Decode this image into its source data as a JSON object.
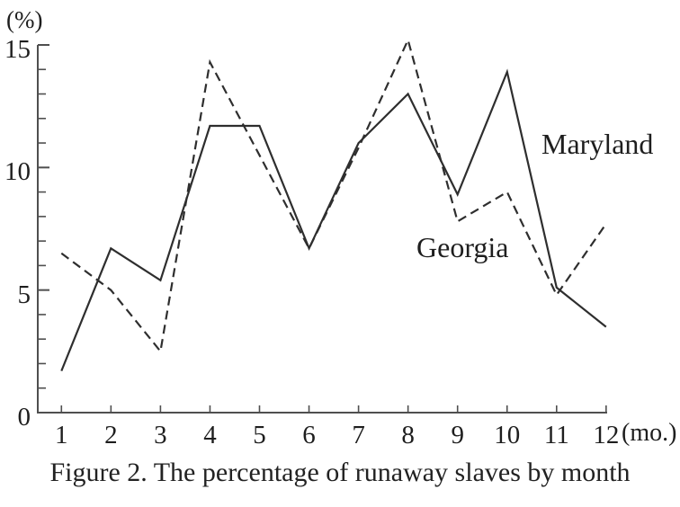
{
  "caption": "Figure 2. The percentage of runaway slaves by month",
  "chart_data": {
    "type": "line",
    "title": "Figure 2. The percentage of runaway slaves by month",
    "xlabel": "(mo.)",
    "ylabel": "(%)",
    "x": [
      1,
      2,
      3,
      4,
      5,
      6,
      7,
      8,
      9,
      10,
      11,
      12
    ],
    "x_tick_labels": [
      "1",
      "2",
      "3",
      "4",
      "5",
      "6",
      "7",
      "8",
      "9",
      "10",
      "11",
      "12"
    ],
    "y_major_ticks": [
      0,
      5,
      10,
      15
    ],
    "y_tick_labels": [
      "0",
      "5",
      "10",
      "15"
    ],
    "y_minor_tick_step": 1,
    "ylim": [
      0,
      15
    ],
    "grid": "off",
    "legend_position": "inline-labels",
    "series": [
      {
        "name": "Maryland",
        "style": "solid",
        "values": [
          1.7,
          6.7,
          5.4,
          11.7,
          11.7,
          6.7,
          11.0,
          13.0,
          8.9,
          13.9,
          5.1,
          3.5
        ]
      },
      {
        "name": "Georgia",
        "style": "dashed",
        "values": [
          6.5,
          5.0,
          2.5,
          14.3,
          10.5,
          6.7,
          10.8,
          15.2,
          7.8,
          9.0,
          4.8,
          7.7
        ]
      }
    ],
    "colors": {
      "line": "#2e2e2e",
      "axis": "#4f4f4f",
      "text": "#1e1e1e",
      "background": "#ffffff"
    }
  }
}
